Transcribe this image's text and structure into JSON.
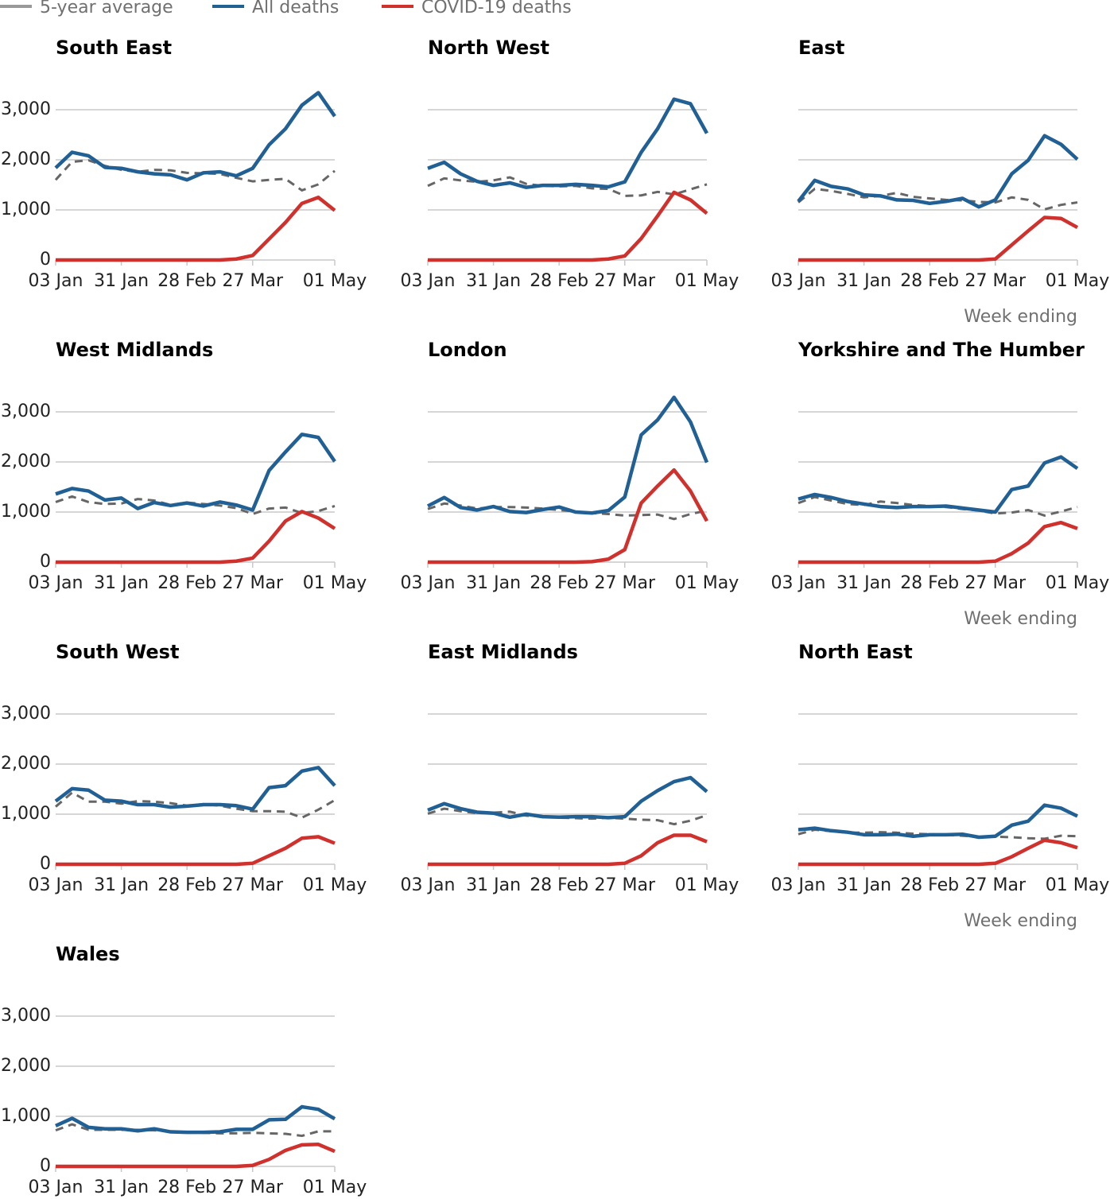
{
  "legend": [
    {
      "name": "5-year average",
      "color": "#999999",
      "line_color": "#666666",
      "dashed": true
    },
    {
      "name": "All deaths",
      "color": "#206095",
      "line_color": "#206095",
      "dashed": false
    },
    {
      "name": "COVID-19 deaths",
      "color": "#d0312d",
      "line_color": "#d0312d",
      "dashed": false
    }
  ],
  "chart_data": [
    {
      "type": "line",
      "title": "South East",
      "categories": [
        "03 Jan",
        null,
        null,
        null,
        "31 Jan",
        null,
        null,
        null,
        "28 Feb",
        null,
        null,
        null,
        "27 Mar",
        null,
        null,
        null,
        null,
        "01 May"
      ],
      "series": [
        {
          "values": [
            1600,
            1960,
            1990,
            1880,
            1800,
            1760,
            1800,
            1790,
            1740,
            1730,
            1720,
            1640,
            1570,
            1600,
            1620,
            1390,
            1510,
            1780
          ]
        },
        {
          "values": [
            1840,
            2150,
            2080,
            1850,
            1830,
            1760,
            1720,
            1700,
            1600,
            1740,
            1760,
            1680,
            1830,
            2300,
            2620,
            3090,
            3340,
            2870
          ]
        },
        {
          "values": [
            0,
            0,
            0,
            0,
            0,
            0,
            0,
            0,
            0,
            0,
            0,
            20,
            90,
            420,
            750,
            1130,
            1250,
            990
          ]
        }
      ],
      "ylim": [
        0,
        3000
      ],
      "yticks": [
        0,
        {
          "value": 1000,
          "label": "1,000"
        },
        {
          "value": 2000,
          "label": "2,000"
        },
        {
          "value": 3000,
          "label": "3,000"
        }
      ],
      "y_tick_labels": true,
      "grid": true
    },
    {
      "type": "line",
      "title": "North West",
      "categories": [
        "03 Jan",
        null,
        null,
        null,
        "31 Jan",
        null,
        null,
        null,
        "28 Feb",
        null,
        null,
        null,
        "27 Mar",
        null,
        null,
        null,
        null,
        "01 May"
      ],
      "series": [
        {
          "values": [
            1480,
            1630,
            1590,
            1560,
            1590,
            1650,
            1520,
            1480,
            1470,
            1480,
            1430,
            1420,
            1280,
            1290,
            1360,
            1310,
            1410,
            1510
          ]
        },
        {
          "values": [
            1830,
            1950,
            1720,
            1570,
            1490,
            1540,
            1450,
            1490,
            1490,
            1510,
            1490,
            1460,
            1560,
            2150,
            2620,
            3210,
            3120,
            2530
          ]
        },
        {
          "values": [
            0,
            0,
            0,
            0,
            0,
            0,
            0,
            0,
            0,
            0,
            0,
            20,
            80,
            430,
            880,
            1350,
            1200,
            930
          ]
        }
      ],
      "ylim": [
        0,
        3000
      ],
      "yticks": [
        0,
        1000,
        2000,
        3000
      ],
      "y_tick_labels": false,
      "grid": true
    },
    {
      "type": "line",
      "title": "East",
      "categories": [
        "03 Jan",
        null,
        null,
        null,
        "31 Jan",
        null,
        null,
        null,
        "28 Feb",
        null,
        null,
        null,
        "27 Mar",
        null,
        null,
        null,
        null,
        "01 May"
      ],
      "series": [
        {
          "values": [
            1150,
            1420,
            1380,
            1320,
            1250,
            1280,
            1340,
            1260,
            1230,
            1200,
            1190,
            1160,
            1150,
            1250,
            1200,
            1010,
            1100,
            1150
          ]
        },
        {
          "values": [
            1170,
            1590,
            1470,
            1420,
            1300,
            1280,
            1200,
            1190,
            1130,
            1170,
            1230,
            1060,
            1200,
            1720,
            1990,
            2480,
            2310,
            2010
          ]
        },
        {
          "values": [
            0,
            0,
            0,
            0,
            0,
            0,
            0,
            0,
            0,
            0,
            0,
            0,
            20,
            300,
            580,
            850,
            830,
            650
          ]
        }
      ],
      "ylim": [
        0,
        3000
      ],
      "yticks": [
        0,
        1000,
        2000,
        3000
      ],
      "y_tick_labels": false,
      "grid": true,
      "xlabel": "Week ending"
    },
    {
      "type": "line",
      "title": "West Midlands",
      "categories": [
        "03 Jan",
        null,
        null,
        null,
        "31 Jan",
        null,
        null,
        null,
        "28 Feb",
        null,
        null,
        null,
        "27 Mar",
        null,
        null,
        null,
        null,
        "01 May"
      ],
      "series": [
        {
          "values": [
            1200,
            1310,
            1200,
            1160,
            1170,
            1260,
            1230,
            1140,
            1190,
            1160,
            1130,
            1080,
            960,
            1070,
            1090,
            980,
            1020,
            1120
          ]
        },
        {
          "values": [
            1360,
            1470,
            1420,
            1240,
            1280,
            1070,
            1190,
            1130,
            1180,
            1120,
            1200,
            1140,
            1040,
            1830,
            2200,
            2550,
            2490,
            2010
          ]
        },
        {
          "values": [
            0,
            0,
            0,
            0,
            0,
            0,
            0,
            0,
            0,
            0,
            0,
            20,
            80,
            420,
            820,
            1010,
            880,
            670
          ]
        }
      ],
      "ylim": [
        0,
        3000
      ],
      "yticks": [
        0,
        {
          "value": 1000,
          "label": "1,000"
        },
        {
          "value": 2000,
          "label": "2,000"
        },
        {
          "value": 3000,
          "label": "3,000"
        }
      ],
      "y_tick_labels": true,
      "grid": true
    },
    {
      "type": "line",
      "title": "London",
      "categories": [
        "03 Jan",
        null,
        null,
        null,
        "31 Jan",
        null,
        null,
        null,
        "28 Feb",
        null,
        null,
        null,
        "27 Mar",
        null,
        null,
        null,
        null,
        "01 May"
      ],
      "series": [
        {
          "values": [
            1060,
            1170,
            1130,
            1070,
            1100,
            1100,
            1090,
            1070,
            1040,
            1010,
            980,
            960,
            930,
            940,
            950,
            860,
            960,
            1030
          ]
        },
        {
          "values": [
            1120,
            1290,
            1090,
            1040,
            1110,
            1010,
            990,
            1050,
            1100,
            1000,
            980,
            1030,
            1300,
            2540,
            2840,
            3290,
            2800,
            1990
          ]
        },
        {
          "values": [
            0,
            0,
            0,
            0,
            0,
            0,
            0,
            0,
            0,
            0,
            10,
            60,
            250,
            1180,
            1520,
            1840,
            1420,
            820
          ]
        }
      ],
      "ylim": [
        0,
        3000
      ],
      "yticks": [
        0,
        1000,
        2000,
        3000
      ],
      "y_tick_labels": false,
      "grid": true
    },
    {
      "type": "line",
      "title": "Yorkshire and The Humber",
      "categories": [
        "03 Jan",
        null,
        null,
        null,
        "31 Jan",
        null,
        null,
        null,
        "28 Feb",
        null,
        null,
        null,
        "27 Mar",
        null,
        null,
        null,
        null,
        "01 May"
      ],
      "series": [
        {
          "values": [
            1180,
            1300,
            1230,
            1160,
            1140,
            1210,
            1180,
            1140,
            1120,
            1100,
            1060,
            1030,
            970,
            990,
            1040,
            930,
            1010,
            1100
          ]
        },
        {
          "values": [
            1260,
            1350,
            1290,
            1210,
            1160,
            1110,
            1090,
            1110,
            1110,
            1120,
            1080,
            1040,
            1000,
            1450,
            1520,
            1980,
            2100,
            1870
          ]
        },
        {
          "values": [
            0,
            0,
            0,
            0,
            0,
            0,
            0,
            0,
            0,
            0,
            0,
            0,
            20,
            170,
            380,
            710,
            790,
            670
          ]
        }
      ],
      "ylim": [
        0,
        3000
      ],
      "yticks": [
        0,
        1000,
        2000,
        3000
      ],
      "y_tick_labels": false,
      "grid": true,
      "xlabel": "Week ending"
    },
    {
      "type": "line",
      "title": "South West",
      "categories": [
        "03 Jan",
        null,
        null,
        null,
        "31 Jan",
        null,
        null,
        null,
        "28 Feb",
        null,
        null,
        null,
        "27 Mar",
        null,
        null,
        null,
        null,
        "01 May"
      ],
      "series": [
        {
          "values": [
            1150,
            1430,
            1250,
            1250,
            1210,
            1260,
            1250,
            1220,
            1170,
            1200,
            1170,
            1110,
            1060,
            1060,
            1050,
            930,
            1090,
            1280
          ]
        },
        {
          "values": [
            1260,
            1510,
            1480,
            1280,
            1260,
            1190,
            1190,
            1140,
            1160,
            1190,
            1190,
            1170,
            1100,
            1530,
            1570,
            1860,
            1930,
            1570
          ]
        },
        {
          "values": [
            0,
            0,
            0,
            0,
            0,
            0,
            0,
            0,
            0,
            0,
            0,
            0,
            20,
            170,
            320,
            520,
            550,
            420
          ]
        }
      ],
      "ylim": [
        0,
        3000
      ],
      "yticks": [
        0,
        {
          "value": 1000,
          "label": "1,000"
        },
        {
          "value": 2000,
          "label": "2,000"
        },
        {
          "value": 3000,
          "label": "3,000"
        }
      ],
      "y_tick_labels": true,
      "grid": true
    },
    {
      "type": "line",
      "title": "East Midlands",
      "categories": [
        "03 Jan",
        null,
        null,
        null,
        "31 Jan",
        null,
        null,
        null,
        "28 Feb",
        null,
        null,
        null,
        "27 Mar",
        null,
        null,
        null,
        null,
        "01 May"
      ],
      "series": [
        {
          "values": [
            1010,
            1110,
            1060,
            1020,
            1030,
            1050,
            970,
            960,
            930,
            920,
            910,
            930,
            910,
            890,
            880,
            800,
            870,
            980
          ]
        },
        {
          "values": [
            1080,
            1210,
            1110,
            1040,
            1020,
            940,
            1000,
            950,
            940,
            950,
            950,
            930,
            950,
            1260,
            1470,
            1650,
            1730,
            1450
          ]
        },
        {
          "values": [
            0,
            0,
            0,
            0,
            0,
            0,
            0,
            0,
            0,
            0,
            0,
            0,
            20,
            170,
            430,
            580,
            580,
            450
          ]
        }
      ],
      "ylim": [
        0,
        3000
      ],
      "yticks": [
        0,
        1000,
        2000,
        3000
      ],
      "y_tick_labels": false,
      "grid": true
    },
    {
      "type": "line",
      "title": "North East",
      "categories": [
        "03 Jan",
        null,
        null,
        null,
        "31 Jan",
        null,
        null,
        null,
        "28 Feb",
        null,
        null,
        null,
        "27 Mar",
        null,
        null,
        null,
        null,
        "01 May"
      ],
      "series": [
        {
          "values": [
            600,
            690,
            660,
            630,
            630,
            640,
            630,
            610,
            600,
            590,
            570,
            550,
            550,
            540,
            520,
            510,
            570,
            560
          ]
        },
        {
          "values": [
            690,
            720,
            670,
            640,
            590,
            590,
            600,
            560,
            590,
            590,
            600,
            540,
            560,
            780,
            860,
            1180,
            1120,
            960
          ]
        },
        {
          "values": [
            0,
            0,
            0,
            0,
            0,
            0,
            0,
            0,
            0,
            0,
            0,
            0,
            20,
            150,
            320,
            480,
            430,
            330
          ]
        }
      ],
      "ylim": [
        0,
        3000
      ],
      "yticks": [
        0,
        1000,
        2000,
        3000
      ],
      "y_tick_labels": false,
      "grid": true,
      "xlabel": "Week ending"
    },
    {
      "type": "line",
      "title": "Wales",
      "categories": [
        "03 Jan",
        null,
        null,
        null,
        "31 Jan",
        null,
        null,
        null,
        "28 Feb",
        null,
        null,
        null,
        "27 Mar",
        null,
        null,
        null,
        null,
        "01 May"
      ],
      "series": [
        {
          "values": [
            720,
            840,
            730,
            730,
            730,
            730,
            720,
            700,
            680,
            670,
            660,
            660,
            670,
            660,
            650,
            610,
            700,
            700
          ]
        },
        {
          "values": [
            810,
            960,
            780,
            750,
            750,
            710,
            750,
            690,
            680,
            680,
            690,
            740,
            740,
            930,
            940,
            1190,
            1140,
            950
          ]
        },
        {
          "values": [
            0,
            0,
            0,
            0,
            0,
            0,
            0,
            0,
            0,
            0,
            0,
            0,
            20,
            140,
            320,
            430,
            440,
            300
          ]
        }
      ],
      "ylim": [
        0,
        3000
      ],
      "yticks": [
        0,
        {
          "value": 1000,
          "label": "1,000"
        },
        {
          "value": 2000,
          "label": "2,000"
        },
        {
          "value": 3000,
          "label": "3,000"
        }
      ],
      "y_tick_labels": true,
      "grid": true
    }
  ]
}
